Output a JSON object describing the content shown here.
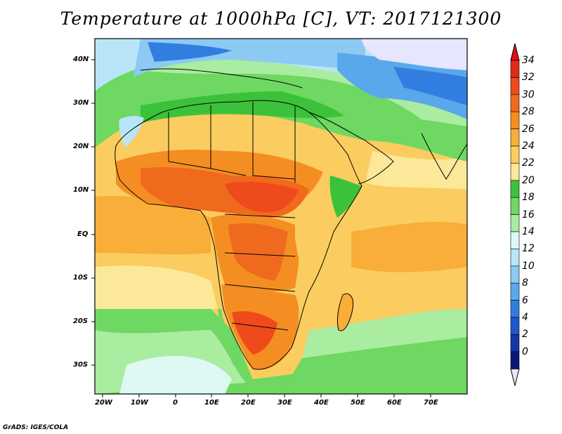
{
  "title": "Temperature at 1000hPa [C], VT: 2017121300",
  "credit": "GrADS: IGES/COLA",
  "lat_labels": [
    "40N",
    "30N",
    "20N",
    "10N",
    "EQ",
    "10S",
    "20S",
    "30S"
  ],
  "lon_labels": [
    "20W",
    "10W",
    "0",
    "10E",
    "20E",
    "30E",
    "40E",
    "50E",
    "60E",
    "70E"
  ],
  "colorbar": {
    "labels": [
      "34",
      "32",
      "30",
      "28",
      "26",
      "24",
      "22",
      "20",
      "18",
      "16",
      "14",
      "12",
      "10",
      "8",
      "6",
      "4",
      "2",
      "0"
    ],
    "colors": [
      "#e02a18",
      "#ee4a1c",
      "#f06a1e",
      "#f48e22",
      "#f8ae38",
      "#fbcc60",
      "#fbe898",
      "#3cc23a",
      "#6ed862",
      "#aaeca0",
      "#def8f4",
      "#b8e6f8",
      "#8ccaf4",
      "#5aa8ec",
      "#327ee0",
      "#1e58cc",
      "#1636a6",
      "#0c1878"
    ],
    "over_color": "#e01010",
    "under_color": "#e6e6ff"
  },
  "regions": [
    {
      "name": "southern-ocean-cool",
      "color": "#6ed862"
    },
    {
      "name": "south-atlantic-cold",
      "color": "#aaeca0"
    },
    {
      "name": "tropical-atlantic",
      "color": "#f8ae38"
    },
    {
      "name": "indian-ocean-warm",
      "color": "#fbcc60"
    },
    {
      "name": "arabian-sea",
      "color": "#fbe898"
    },
    {
      "name": "sahara-mild",
      "color": "#fbcc60"
    },
    {
      "name": "central-africa-hot",
      "color": "#f06a1e"
    },
    {
      "name": "southern-africa-hot",
      "color": "#ee4a1c"
    },
    {
      "name": "north-africa-cool",
      "color": "#6ed862"
    },
    {
      "name": "europe-cold",
      "color": "#5aa8ec"
    },
    {
      "name": "central-asia-cold",
      "color": "#327ee0"
    },
    {
      "name": "himalaya-missing",
      "color": "#e6e6ff"
    }
  ]
}
